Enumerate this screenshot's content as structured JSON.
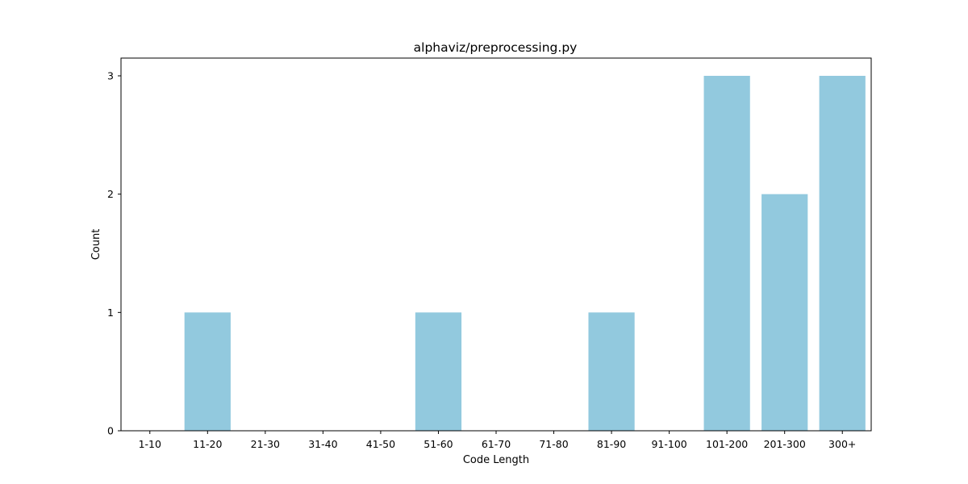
{
  "chart_data": {
    "type": "bar",
    "title": "alphaviz/preprocessing.py",
    "xlabel": "Code Length",
    "ylabel": "Count",
    "categories": [
      "1-10",
      "11-20",
      "21-30",
      "31-40",
      "41-50",
      "51-60",
      "61-70",
      "71-80",
      "81-90",
      "91-100",
      "101-200",
      "201-300",
      "300+"
    ],
    "values": [
      0,
      1,
      0,
      0,
      0,
      1,
      0,
      0,
      1,
      0,
      3,
      2,
      3
    ],
    "ylim": [
      0,
      3.15
    ],
    "yticks": [
      0,
      1,
      2,
      3
    ],
    "bar_color": "#92c9de",
    "grid": false,
    "legend": "none"
  }
}
